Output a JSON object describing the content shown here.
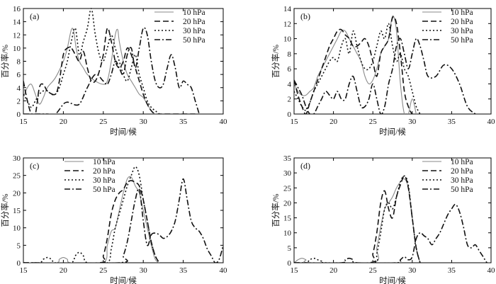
{
  "chart_data": [
    {
      "type": "line",
      "panel_label": "(a)",
      "xlabel": "时间/候",
      "ylabel": "百分率/%",
      "xlim": [
        15,
        40
      ],
      "ylim": [
        0,
        16
      ],
      "xticks": [
        15,
        20,
        25,
        30,
        35,
        40
      ],
      "yticks": [
        0,
        2,
        4,
        6,
        8,
        10,
        12,
        14,
        16
      ],
      "legend_position": "top-right",
      "series": [
        {
          "name": "10 hPa",
          "style": "solid",
          "x": [
            15,
            15.5,
            16,
            16.5,
            17,
            17.5,
            18,
            19,
            20,
            20.5,
            21,
            21.3,
            21.6,
            22,
            22.5,
            23,
            24,
            25,
            25.5,
            26,
            26.5,
            26.8,
            27,
            27.5,
            28,
            28.5,
            29,
            29.5,
            30,
            30.5,
            31,
            31.5
          ],
          "y": [
            2.5,
            4,
            4.5,
            3,
            1.5,
            2.5,
            4,
            5.5,
            8,
            10,
            12.8,
            12.5,
            10,
            8,
            7,
            6,
            5,
            4.5,
            5,
            8,
            12,
            12.8,
            11,
            8,
            6,
            5,
            4,
            3,
            2.5,
            1.5,
            0.5,
            0
          ]
        },
        {
          "name": "20 hPa",
          "style": "dashed",
          "x": [
            15,
            15.5,
            16,
            16.5,
            17,
            17.5,
            18,
            19,
            19.5,
            20,
            20.5,
            21,
            21.5,
            22,
            22.5,
            23,
            23.5,
            24,
            24.5,
            25,
            25.5,
            26,
            26.5,
            27,
            27.5,
            28,
            28.5,
            29,
            29.5,
            30,
            30.5,
            31,
            31.5,
            32,
            33,
            34,
            35,
            36,
            36.5
          ],
          "y": [
            5,
            2,
            0,
            0,
            4,
            4.5,
            3.5,
            3,
            5,
            9,
            10,
            10,
            9,
            8,
            9.5,
            7,
            5,
            5,
            6.5,
            9,
            13,
            11,
            8,
            7,
            8,
            10,
            9,
            7,
            5,
            3,
            1.5,
            0.5,
            0,
            0,
            0,
            0,
            0,
            0,
            0
          ]
        },
        {
          "name": "30 hPa",
          "style": "dotted",
          "x": [
            15,
            15.5,
            16,
            16.5,
            17,
            17.5,
            18,
            18.5,
            19,
            19.5,
            20,
            20.5,
            21,
            21.5,
            22,
            22.5,
            23,
            23.5,
            24,
            24.5,
            25,
            25.5,
            26,
            26.5,
            27,
            27.5,
            28,
            28.5,
            29,
            29.5,
            30,
            30.5,
            31,
            31.5,
            32
          ],
          "y": [
            3,
            2,
            1,
            2,
            3,
            3.5,
            3.5,
            3,
            3,
            4,
            6,
            8,
            11,
            13,
            9,
            11,
            13,
            16,
            12,
            9,
            8,
            10,
            12,
            10,
            8,
            6,
            5,
            7,
            9,
            6,
            4,
            2,
            1,
            0.5,
            0
          ]
        },
        {
          "name": "50 hPa",
          "style": "dashdot",
          "x": [
            15,
            16,
            17,
            18,
            19,
            20,
            20.5,
            21,
            22,
            23,
            24,
            25,
            25.5,
            26,
            26.5,
            27,
            27.5,
            28,
            28.5,
            29,
            29.5,
            30,
            30.5,
            31,
            31.5,
            32,
            32.5,
            33,
            33.5,
            34,
            34.5,
            35,
            35.5,
            36,
            36.5,
            37
          ],
          "y": [
            0,
            0,
            0,
            0,
            0,
            1.5,
            1.8,
            1.6,
            1.5,
            4,
            6,
            5,
            4.5,
            6,
            8,
            7,
            6,
            9,
            10,
            7,
            10,
            13,
            12,
            8,
            5,
            4,
            4.5,
            7,
            9,
            7,
            4,
            5,
            4.5,
            4,
            2,
            0
          ]
        }
      ]
    },
    {
      "type": "line",
      "panel_label": "(b)",
      "xlabel": "时间/候",
      "ylabel": "百分率/%",
      "xlim": [
        15,
        40
      ],
      "ylim": [
        0,
        14
      ],
      "xticks": [
        15,
        20,
        25,
        30,
        35,
        40
      ],
      "yticks": [
        0,
        2,
        4,
        6,
        8,
        10,
        12,
        14
      ],
      "legend_position": "top-right",
      "series": [
        {
          "name": "10 hPa",
          "style": "solid",
          "x": [
            15,
            15.5,
            16,
            16.5,
            17,
            17.5,
            18,
            18.5,
            19,
            19.5,
            20,
            20.5,
            21,
            21.5,
            22,
            22.5,
            23,
            23.5,
            24,
            24.5,
            25,
            25.5,
            26,
            26.5,
            27,
            27.5,
            28,
            28.5,
            29,
            29.5,
            30,
            30.5
          ],
          "y": [
            4,
            3,
            2.5,
            2.5,
            3,
            3.5,
            5,
            6,
            7,
            8,
            9,
            10,
            11,
            11,
            10,
            9,
            8,
            7,
            5,
            4,
            4.5,
            6,
            8,
            9,
            10,
            13,
            11,
            4,
            0,
            0,
            2,
            0
          ]
        },
        {
          "name": "20 hPa",
          "style": "dashed",
          "x": [
            15,
            15.5,
            16,
            16.5,
            17,
            17.5,
            18,
            18.5,
            19,
            19.5,
            20,
            20.5,
            21,
            21.5,
            22,
            22.5,
            23,
            23.5,
            24,
            24.5,
            25,
            25.5,
            26,
            26.5,
            27,
            27.5,
            28,
            28.5,
            29,
            29.5,
            30,
            30.5
          ],
          "y": [
            4.5,
            2.5,
            1,
            0,
            1.5,
            3,
            4.5,
            6,
            7.5,
            9,
            10,
            11,
            11.2,
            10.5,
            10,
            9,
            9,
            9.5,
            10,
            9,
            7,
            5,
            8,
            9,
            10,
            12.8,
            12,
            8,
            3,
            1,
            0,
            0
          ]
        },
        {
          "name": "30 hPa",
          "style": "dotted",
          "x": [
            15,
            15.5,
            16,
            16.5,
            17,
            17.5,
            18,
            18.5,
            19,
            19.5,
            20,
            20.5,
            21,
            21.5,
            22,
            22.5,
            23,
            23.5,
            24,
            24.5,
            25,
            25.5,
            26,
            26.5,
            27,
            27.5,
            28,
            28.5,
            29,
            29.5,
            30,
            30.5,
            31
          ],
          "y": [
            3,
            2,
            1,
            0.5,
            1.5,
            3,
            4,
            5,
            6,
            7,
            7.5,
            7,
            9,
            10,
            8,
            11,
            9,
            7,
            6,
            6,
            7,
            9,
            11,
            10,
            12,
            9,
            7,
            8,
            6,
            5,
            3,
            1,
            0
          ]
        },
        {
          "name": "50 hPa",
          "style": "dashdot",
          "x": [
            15,
            15.5,
            16,
            16.5,
            17,
            17.5,
            18,
            18.5,
            19,
            19.5,
            20,
            20.5,
            21,
            21.5,
            22,
            22.5,
            23,
            23.5,
            24,
            24.5,
            25,
            25.5,
            26,
            26.5,
            27,
            27.5,
            28,
            28.5,
            29,
            29.5,
            30,
            30.5,
            31,
            31.5,
            32,
            33,
            34,
            35,
            36,
            37,
            38
          ],
          "y": [
            4.5,
            3.5,
            2.5,
            1,
            0,
            0,
            1,
            2,
            3,
            2.5,
            2,
            3,
            2,
            2,
            4,
            5,
            3,
            1,
            1,
            2,
            4,
            2,
            0,
            1,
            4,
            6,
            9,
            10,
            8,
            6,
            8,
            10,
            9,
            7,
            5,
            5,
            6.5,
            6,
            4,
            1,
            0
          ]
        }
      ]
    },
    {
      "type": "line",
      "panel_label": "(c)",
      "xlabel": "时间/候",
      "ylabel": "百分率/%",
      "xlim": [
        15,
        40
      ],
      "ylim": [
        0,
        30
      ],
      "xticks": [
        15,
        20,
        25,
        30,
        35,
        40
      ],
      "yticks": [
        0,
        5,
        10,
        15,
        20,
        25,
        30
      ],
      "legend_position": "top-left",
      "series": [
        {
          "name": "10 hPa",
          "style": "solid",
          "x": [
            15,
            19,
            19.5,
            20,
            20.5,
            21,
            25,
            25.5,
            26,
            26.5,
            27,
            27.5,
            28,
            28.5,
            29,
            29.5,
            30,
            30.5,
            31,
            31.5,
            32
          ],
          "y": [
            0,
            0,
            1,
            1.5,
            1,
            0,
            0,
            5,
            9,
            10,
            15,
            20,
            24,
            24.5,
            22,
            20,
            15,
            10,
            5,
            1,
            0
          ]
        },
        {
          "name": "20 hPa",
          "style": "dashed",
          "x": [
            15,
            24.5,
            25,
            25.5,
            26,
            26.5,
            27,
            27.5,
            28,
            28.5,
            29,
            29.5,
            30,
            30.5,
            31,
            31.5,
            32
          ],
          "y": [
            0,
            0,
            2,
            7,
            14,
            18,
            20,
            21,
            23,
            23.5,
            23,
            22,
            18,
            12,
            6,
            2,
            0
          ]
        },
        {
          "name": "30 hPa",
          "style": "dotted",
          "x": [
            15,
            17,
            17.5,
            18,
            18.5,
            19,
            21,
            21.5,
            22,
            22.5,
            23,
            25.5,
            26,
            26.5,
            27,
            27.5,
            28,
            28.5,
            29,
            29.5,
            30,
            30.5,
            31,
            31.5,
            32
          ],
          "y": [
            0,
            0,
            1,
            1.5,
            1,
            0,
            0,
            2,
            3,
            2,
            0,
            0,
            4,
            10,
            14,
            18,
            22,
            25,
            27.5,
            25,
            18,
            12,
            6,
            2,
            0
          ]
        },
        {
          "name": "50 hPa",
          "style": "dashdot",
          "x": [
            15,
            27,
            27.5,
            28,
            28.5,
            29,
            29.5,
            30,
            30.5,
            31,
            31.5,
            32,
            32.5,
            33,
            33.5,
            34,
            34.5,
            35,
            35.5,
            36,
            36.5,
            37,
            37.5,
            38,
            38.5,
            39,
            39.5,
            40
          ],
          "y": [
            0,
            0,
            2,
            6,
            12,
            18,
            21,
            12,
            5,
            8,
            8.5,
            8,
            7,
            7.5,
            9,
            12,
            18,
            24,
            18,
            12,
            10,
            9,
            7,
            4,
            2,
            0,
            1,
            5
          ]
        }
      ]
    },
    {
      "type": "line",
      "panel_label": "(d)",
      "xlabel": "时间/候",
      "ylabel": "百分率/%",
      "xlim": [
        15,
        40
      ],
      "ylim": [
        0,
        35
      ],
      "xticks": [
        15,
        20,
        25,
        30,
        35,
        40
      ],
      "yticks": [
        0,
        5,
        10,
        15,
        20,
        25,
        30,
        35
      ],
      "legend_position": "top-right",
      "series": [
        {
          "name": "10 hPa",
          "style": "solid",
          "x": [
            15,
            15.5,
            16,
            16.5,
            17,
            25,
            25.5,
            26,
            26.5,
            27,
            27.5,
            28,
            28.5,
            29,
            29.5,
            30,
            30.5,
            31
          ],
          "y": [
            0,
            1,
            1.5,
            1,
            0,
            0,
            5,
            12,
            18,
            20,
            22,
            25,
            27,
            28,
            25,
            15,
            5,
            0
          ]
        },
        {
          "name": "20 hPa",
          "style": "dashed",
          "x": [
            15,
            24.5,
            25,
            25.5,
            26,
            26.5,
            27,
            27.5,
            28,
            28.5,
            29,
            29.5,
            30,
            30.5,
            31
          ],
          "y": [
            0,
            0,
            3,
            10,
            20,
            24,
            18,
            15,
            22,
            26,
            29,
            25,
            15,
            5,
            0
          ]
        },
        {
          "name": "30 hPa",
          "style": "dotted",
          "x": [
            15,
            16.5,
            17,
            17.5,
            18,
            18.5,
            19,
            25,
            25.5,
            26,
            26.5,
            27,
            27.5,
            28,
            28.5,
            29,
            29.5,
            30,
            30.5,
            31
          ],
          "y": [
            0,
            0,
            1,
            1.5,
            1,
            0.5,
            0,
            0,
            3,
            10,
            18,
            20,
            18,
            22,
            27,
            29,
            26,
            15,
            5,
            0
          ]
        },
        {
          "name": "50 hPa",
          "style": "dashdot",
          "x": [
            15,
            21,
            21.5,
            22,
            22.5,
            23,
            28,
            28.5,
            29,
            29.5,
            30,
            30.5,
            31,
            31.5,
            32,
            32.5,
            33,
            33.5,
            34,
            34.5,
            35,
            35.5,
            36,
            36.5,
            37,
            37.5,
            38,
            38.5,
            39,
            39.5,
            40
          ],
          "y": [
            0,
            0,
            1,
            1.5,
            1,
            0,
            0,
            1,
            2,
            1,
            2,
            8,
            10,
            9,
            8,
            6,
            8,
            10,
            13,
            16,
            18,
            19.5,
            17,
            12,
            6,
            5,
            6,
            4,
            2,
            0,
            0
          ]
        }
      ]
    }
  ]
}
